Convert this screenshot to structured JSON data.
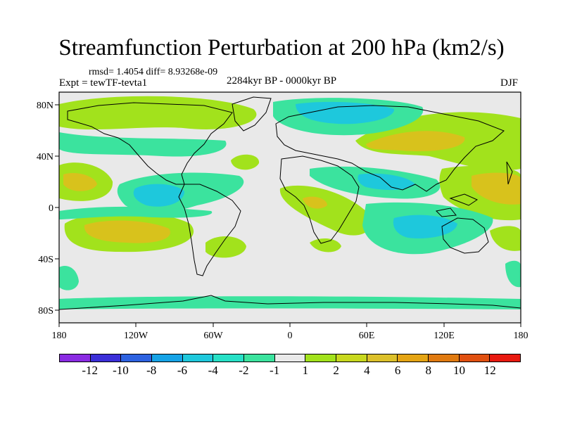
{
  "figure": {
    "title": "Streamfunction Perturbation at 200 hPa (km2/s)",
    "stats": "rmsd= 1.4054 diff= 8.93268e-09",
    "experiment": "Expt = tewTF-tevta1",
    "period": "2284kyr BP - 0000kyr BP",
    "season": "DJF"
  },
  "map": {
    "projection": "cylindrical equidistant",
    "lon_range": [
      -180,
      180
    ],
    "lat_range": [
      -90,
      90
    ],
    "lat_tick_labels": [
      "80N",
      "40N",
      "0",
      "40S",
      "80S"
    ],
    "lon_tick_labels": [
      "180",
      "120W",
      "60W",
      "0",
      "60E",
      "120E",
      "180"
    ],
    "background_color": "#e9e9e9",
    "coastline_color": "#000000"
  },
  "colorbar": {
    "colors": [
      "#8a2be2",
      "#3b2fd8",
      "#2d62e0",
      "#16a3e6",
      "#1ec8dc",
      "#27e0c6",
      "#3be39e",
      "#e9e9e9",
      "#a2e21c",
      "#c8d81e",
      "#dcc02a",
      "#e4a414",
      "#e07a10",
      "#e05010",
      "#e81a10"
    ],
    "labels": [
      "-12",
      "-10",
      "-8",
      "-6",
      "-4",
      "-2",
      "-1",
      "1",
      "2",
      "4",
      "6",
      "8",
      "10",
      "12"
    ]
  }
}
